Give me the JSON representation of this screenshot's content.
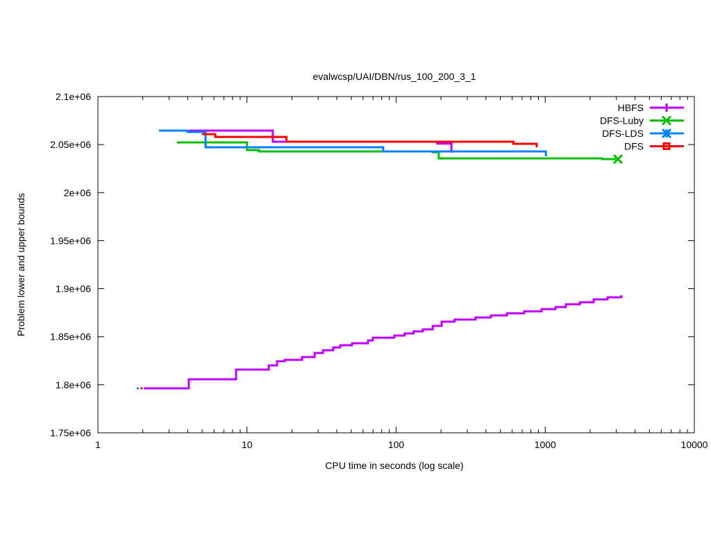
{
  "chart_data": {
    "type": "line",
    "step": "post",
    "title": "evalwcsp/UAI/DBN/rus_100_200_3_1",
    "xlabel": "CPU time in seconds (log scale)",
    "ylabel": "Problem lower and upper bounds",
    "xscale": "log",
    "xlim": [
      1,
      10000
    ],
    "ylim": [
      1750000,
      2100000
    ],
    "xticks": [
      1,
      10,
      100,
      1000,
      10000
    ],
    "xtick_labels": [
      "1",
      "10",
      "100",
      "1000",
      "10000"
    ],
    "yticks": [
      1750000,
      1800000,
      1850000,
      1900000,
      1950000,
      2000000,
      2050000,
      2100000
    ],
    "ytick_labels": [
      "1.75e+06",
      "1.8e+06",
      "1.85e+06",
      "1.9e+06",
      "1.95e+06",
      "2e+06",
      "2.05e+06",
      "2.1e+06"
    ],
    "grid": false,
    "legend_position": "top-right",
    "series": [
      {
        "name": "HBFS",
        "color": "#bf00ff",
        "marker": "plus",
        "segments": [
          [
            [
              4.07,
              2064600
            ],
            [
              14.9,
              2053000
            ],
            [
              189,
              2051000
            ],
            [
              235,
              2041500
            ]
          ],
          [
            [
              2.03,
              1796300
            ],
            [
              4.07,
              1805700
            ],
            [
              8.45,
              1815800
            ],
            [
              14.0,
              1820100
            ],
            [
              15.9,
              1824500
            ],
            [
              17.9,
              1825900
            ],
            [
              23.4,
              1828800
            ],
            [
              28.4,
              1833100
            ],
            [
              32.3,
              1836000
            ],
            [
              37.9,
              1838900
            ],
            [
              42.2,
              1841100
            ],
            [
              50.6,
              1843200
            ],
            [
              64.8,
              1846100
            ],
            [
              69.8,
              1849000
            ],
            [
              97.3,
              1851200
            ],
            [
              114,
              1853400
            ],
            [
              131,
              1855600
            ],
            [
              151,
              1857700
            ],
            [
              176,
              1861300
            ],
            [
              202,
              1865700
            ],
            [
              247,
              1867900
            ],
            [
              341,
              1870000
            ],
            [
              432,
              1872200
            ],
            [
              553,
              1874400
            ],
            [
              723,
              1876500
            ],
            [
              946,
              1878700
            ],
            [
              1172,
              1880900
            ],
            [
              1376,
              1883800
            ],
            [
              1706,
              1885900
            ],
            [
              2113,
              1888800
            ],
            [
              2618,
              1891000
            ],
            [
              3243,
              1893200
            ]
          ]
        ]
      },
      {
        "name": "DFS-Luby",
        "color": "#00c000",
        "marker": "x",
        "end_marker": true,
        "segments": [
          [
            [
              3.39,
              2052300
            ],
            [
              10.0,
              2044300
            ],
            [
              12.0,
              2042900
            ],
            [
              176,
              2042100
            ],
            [
              193,
              2035600
            ],
            [
              2404,
              2034900
            ],
            [
              3075,
              2034900
            ]
          ]
        ]
      },
      {
        "name": "DFS-LDS",
        "color": "#0080ff",
        "marker": "star",
        "segments": [
          [
            [
              2.57,
              2064600
            ],
            [
              3.98,
              2063100
            ],
            [
              5.27,
              2047200
            ],
            [
              81.9,
              2042900
            ],
            [
              1010,
              2037800
            ]
          ],
          [
            [
              1.86,
              1796300
            ]
          ]
        ]
      },
      {
        "name": "DFS",
        "color": "#ff0000",
        "marker": "square",
        "segments": [
          [
            [
              4.99,
              2060900
            ],
            [
              6.12,
              2058000
            ],
            [
              18.4,
              2053000
            ],
            [
              612,
              2050800
            ],
            [
              877,
              2047200
            ]
          ],
          [
            [
              1.97,
              1796300
            ]
          ]
        ]
      }
    ]
  }
}
